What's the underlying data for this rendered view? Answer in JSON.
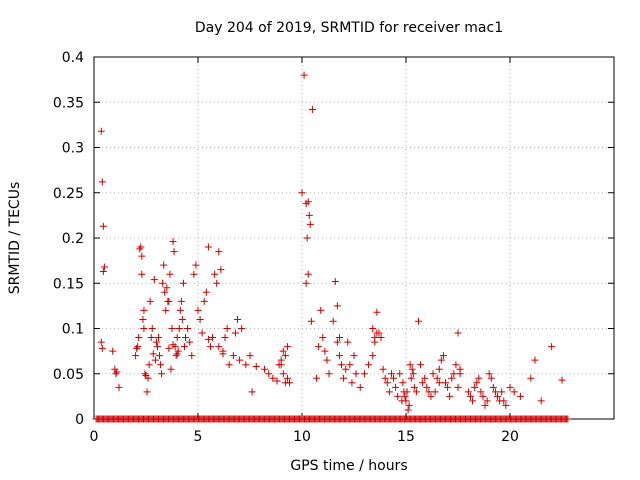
{
  "chart_data": {
    "type": "scatter",
    "title": "Day 204 of 2019, SRMTID for receiver mac1",
    "xlabel": "GPS time / hours",
    "ylabel": "SRMTID / TECUs",
    "xlim": [
      0,
      25
    ],
    "ylim": [
      0,
      0.4
    ],
    "x_ticks": [
      0,
      5,
      10,
      15,
      20
    ],
    "x_tick_labels": [
      "0",
      "5",
      "10",
      "15",
      "20"
    ],
    "y_ticks": [
      0,
      0.05,
      0.1,
      0.15,
      0.2,
      0.25,
      0.3,
      0.35,
      0.4
    ],
    "y_tick_labels": [
      "0",
      "0.05",
      "0.1",
      "0.15",
      "0.2",
      "0.25",
      "0.3",
      "0.35",
      "0.4"
    ],
    "grid": true,
    "marker": "+",
    "marker_color": "#cc0000",
    "series": [
      {
        "name": "SRMTID",
        "x": [
          0.35,
          0.4,
          0.45,
          0.5,
          0.35,
          0.4,
          0.45,
          0.9,
          1.0,
          1.05,
          1.1,
          1.2,
          2.0,
          2.05,
          2.1,
          2.15,
          2.2,
          2.25,
          2.3,
          2.35,
          2.4,
          2.45,
          2.5,
          2.55,
          2.6,
          2.65,
          2.7,
          2.75,
          2.8,
          2.85,
          2.9,
          2.95,
          3.0,
          3.05,
          3.1,
          3.15,
          3.2,
          3.25,
          3.3,
          3.35,
          3.4,
          3.45,
          3.5,
          3.55,
          3.6,
          3.65,
          3.7,
          3.75,
          3.8,
          3.85,
          3.9,
          3.95,
          4.0,
          4.05,
          4.1,
          4.15,
          4.2,
          4.25,
          4.3,
          4.35,
          4.4,
          4.5,
          4.6,
          4.7,
          4.8,
          4.9,
          5.0,
          5.1,
          5.2,
          5.3,
          5.4,
          5.5,
          5.6,
          5.7,
          5.8,
          5.9,
          6.0,
          6.1,
          6.2,
          6.3,
          6.4,
          6.5,
          6.7,
          6.8,
          6.9,
          7.0,
          7.1,
          7.3,
          7.5,
          7.6,
          7.8,
          8.2,
          8.4,
          8.6,
          8.8,
          8.9,
          9.0,
          9.1,
          9.2,
          9.3,
          9.0,
          9.1,
          9.2,
          9.3,
          9.4,
          10.0,
          10.1,
          10.2,
          10.25,
          10.3,
          10.35,
          10.4,
          10.45,
          10.5,
          10.2,
          10.3,
          10.7,
          10.8,
          10.9,
          11.0,
          11.1,
          11.2,
          11.3,
          11.5,
          11.6,
          11.7,
          11.8,
          11.9,
          12.0,
          12.1,
          12.2,
          12.3,
          12.4,
          12.5,
          12.6,
          12.8,
          13.0,
          13.2,
          13.4,
          13.5,
          13.6,
          13.7,
          13.8,
          13.9,
          14.0,
          14.1,
          14.2,
          14.3,
          14.4,
          14.5,
          14.6,
          14.7,
          14.8,
          14.85,
          14.9,
          14.95,
          15.0,
          15.05,
          15.1,
          15.15,
          15.2,
          15.25,
          15.3,
          15.35,
          15.4,
          15.5,
          15.6,
          15.7,
          15.8,
          15.9,
          16.0,
          16.1,
          16.2,
          16.3,
          16.4,
          16.5,
          16.6,
          16.7,
          16.8,
          16.9,
          17.0,
          17.1,
          17.2,
          17.3,
          17.4,
          17.5,
          17.6,
          18.0,
          18.1,
          18.2,
          18.3,
          18.4,
          18.5,
          18.6,
          18.7,
          18.8,
          18.9,
          19.0,
          19.1,
          19.2,
          19.3,
          19.4,
          19.5,
          19.6,
          19.7,
          19.8,
          20.0,
          20.2,
          20.5,
          21.0,
          21.2,
          21.5,
          22.0,
          22.5,
          13.4,
          13.5,
          13.6,
          16.6,
          17.5,
          17.6,
          11.7,
          11.8,
          3.6,
          3.8,
          4.0,
          5.5,
          6.0,
          6.2,
          2.3,
          2.4
        ],
        "y": [
          0.318,
          0.262,
          0.213,
          0.168,
          0.085,
          0.078,
          0.163,
          0.075,
          0.055,
          0.05,
          0.052,
          0.035,
          0.07,
          0.078,
          0.08,
          0.09,
          0.188,
          0.19,
          0.16,
          0.11,
          0.12,
          0.05,
          0.048,
          0.03,
          0.045,
          0.06,
          0.13,
          0.09,
          0.1,
          0.072,
          0.154,
          0.065,
          0.085,
          0.08,
          0.09,
          0.07,
          0.06,
          0.05,
          0.15,
          0.17,
          0.14,
          0.12,
          0.145,
          0.13,
          0.13,
          0.16,
          0.055,
          0.1,
          0.196,
          0.185,
          0.08,
          0.07,
          0.09,
          0.075,
          0.1,
          0.12,
          0.13,
          0.11,
          0.15,
          0.08,
          0.09,
          0.1,
          0.085,
          0.07,
          0.16,
          0.17,
          0.12,
          0.11,
          0.095,
          0.13,
          0.14,
          0.19,
          0.08,
          0.09,
          0.16,
          0.15,
          0.185,
          0.165,
          0.075,
          0.09,
          0.1,
          0.06,
          0.07,
          0.095,
          0.11,
          0.065,
          0.1,
          0.06,
          0.07,
          0.03,
          0.058,
          0.055,
          0.05,
          0.045,
          0.042,
          0.06,
          0.065,
          0.075,
          0.07,
          0.08,
          0.06,
          0.05,
          0.04,
          0.045,
          0.04,
          0.25,
          0.38,
          0.238,
          0.2,
          0.24,
          0.225,
          0.215,
          0.108,
          0.342,
          0.15,
          0.16,
          0.045,
          0.08,
          0.12,
          0.09,
          0.075,
          0.065,
          0.05,
          0.108,
          0.152,
          0.125,
          0.09,
          0.06,
          0.045,
          0.055,
          0.085,
          0.06,
          0.04,
          0.07,
          0.05,
          0.035,
          0.05,
          0.06,
          0.07,
          0.085,
          0.118,
          0.095,
          0.09,
          0.055,
          0.045,
          0.04,
          0.03,
          0.05,
          0.045,
          0.035,
          0.025,
          0.05,
          0.02,
          0.04,
          0.03,
          0.025,
          0.02,
          0.03,
          0.01,
          0.015,
          0.06,
          0.045,
          0.055,
          0.05,
          0.035,
          0.03,
          0.108,
          0.06,
          0.04,
          0.045,
          0.035,
          0.03,
          0.025,
          0.05,
          0.03,
          0.045,
          0.055,
          0.065,
          0.07,
          0.04,
          0.035,
          0.025,
          0.045,
          0.05,
          0.06,
          0.095,
          0.055,
          0.03,
          0.025,
          0.02,
          0.035,
          0.04,
          0.045,
          0.03,
          0.025,
          0.015,
          0.02,
          0.05,
          0.045,
          0.035,
          0.03,
          0.025,
          0.02,
          0.03,
          0.02,
          0.015,
          0.035,
          0.03,
          0.025,
          0.045,
          0.065,
          0.02,
          0.08,
          0.043,
          0.1,
          0.09,
          0.095,
          0.04,
          0.035,
          0.05,
          0.085,
          0.07,
          0.078,
          0.082,
          0.072,
          0.088,
          0.08,
          0.072,
          0.18,
          0.1
        ],
        "baseline_x_range": [
          0.1,
          22.8
        ],
        "baseline_y": 0
      }
    ]
  }
}
